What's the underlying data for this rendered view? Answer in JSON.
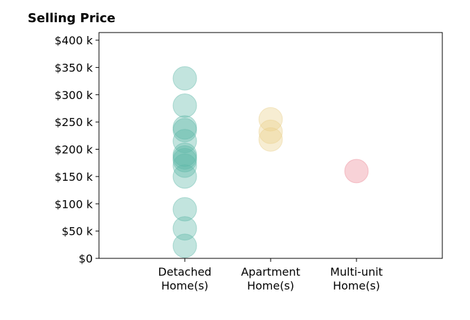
{
  "chart_data": {
    "type": "scatter",
    "title": "Selling Price",
    "xlabel": "",
    "ylabel": "",
    "categories": [
      "Detached Home(s)",
      "Apartment Home(s)",
      "Multi-unit Home(s)"
    ],
    "category_lines": [
      [
        "Detached",
        "Home(s)"
      ],
      [
        "Apartment",
        "Home(s)"
      ],
      [
        "Multi-unit",
        "Home(s)"
      ]
    ],
    "ylim": [
      0,
      400000
    ],
    "yticks": [
      0,
      50000,
      100000,
      150000,
      200000,
      250000,
      300000,
      350000,
      400000
    ],
    "ytick_labels": [
      "$0",
      "$50 k",
      "$100 k",
      "$150 k",
      "$200 k",
      "$250 k",
      "$300 k",
      "$350 k",
      "$400 k"
    ],
    "grid": false,
    "series": [
      {
        "category": "Detached Home(s)",
        "color": "#5fb8a8",
        "values": [
          330000,
          280000,
          240000,
          235000,
          215000,
          190000,
          185000,
          180000,
          170000,
          150000,
          90000,
          55000,
          23000
        ]
      },
      {
        "category": "Apartment Home(s)",
        "color": "#e9cf8a",
        "values": [
          255000,
          232000,
          218000
        ]
      },
      {
        "category": "Multi-unit Home(s)",
        "color": "#ec8a96",
        "values": [
          160000
        ]
      }
    ]
  }
}
